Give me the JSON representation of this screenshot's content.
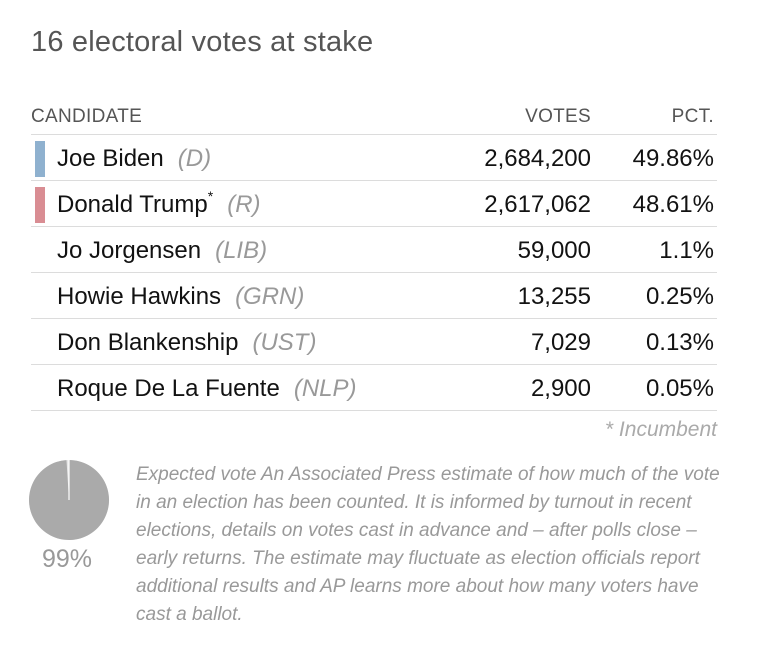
{
  "title": "16 electoral votes at stake",
  "table": {
    "headers": {
      "candidate": "CANDIDATE",
      "votes": "VOTES",
      "pct": "PCT."
    },
    "rows": [
      {
        "name": "Joe Biden",
        "incumbent_marker": "",
        "party": "(D)",
        "votes": "2,684,200",
        "pct": "49.86%",
        "color": "#8fb1cf"
      },
      {
        "name": "Donald Trump",
        "incumbent_marker": "*",
        "party": "(R)",
        "votes": "2,617,062",
        "pct": "48.61%",
        "color": "#d98d93"
      },
      {
        "name": "Jo Jorgensen",
        "incumbent_marker": "",
        "party": "(LIB)",
        "votes": "59,000",
        "pct": "1.1%",
        "color": ""
      },
      {
        "name": "Howie Hawkins",
        "incumbent_marker": "",
        "party": "(GRN)",
        "votes": "13,255",
        "pct": "0.25%",
        "color": ""
      },
      {
        "name": "Don Blankenship",
        "incumbent_marker": "",
        "party": "(UST)",
        "votes": "7,029",
        "pct": "0.13%",
        "color": ""
      },
      {
        "name": "Roque De La Fuente",
        "incumbent_marker": "",
        "party": "(NLP)",
        "votes": "2,900",
        "pct": "0.05%",
        "color": ""
      }
    ],
    "footnote": "* Incumbent"
  },
  "expected_vote": {
    "value": 99,
    "label": "99%",
    "fill_color": "#aaaaaa",
    "description": "Expected vote An Associated Press estimate of how much of the vote in an election has been counted. It is informed by turnout in recent elections, details on votes cast in advance and – after polls close – early returns. The estimate may fluctuate as election officials report additional results and AP learns more about how many voters have cast a ballot."
  },
  "chart_data": {
    "type": "table",
    "title": "16 electoral votes at stake",
    "columns": [
      "CANDIDATE",
      "VOTES",
      "PCT."
    ],
    "series": [
      {
        "name": "Joe Biden",
        "party": "D",
        "votes": 2684200,
        "pct": 49.86
      },
      {
        "name": "Donald Trump",
        "party": "R",
        "votes": 2617062,
        "pct": 48.61
      },
      {
        "name": "Jo Jorgensen",
        "party": "LIB",
        "votes": 59000,
        "pct": 1.1
      },
      {
        "name": "Howie Hawkins",
        "party": "GRN",
        "votes": 13255,
        "pct": 0.25
      },
      {
        "name": "Don Blankenship",
        "party": "UST",
        "votes": 7029,
        "pct": 0.13
      },
      {
        "name": "Roque De La Fuente",
        "party": "NLP",
        "votes": 2900,
        "pct": 0.05
      }
    ],
    "expected_vote_pct": 99
  }
}
